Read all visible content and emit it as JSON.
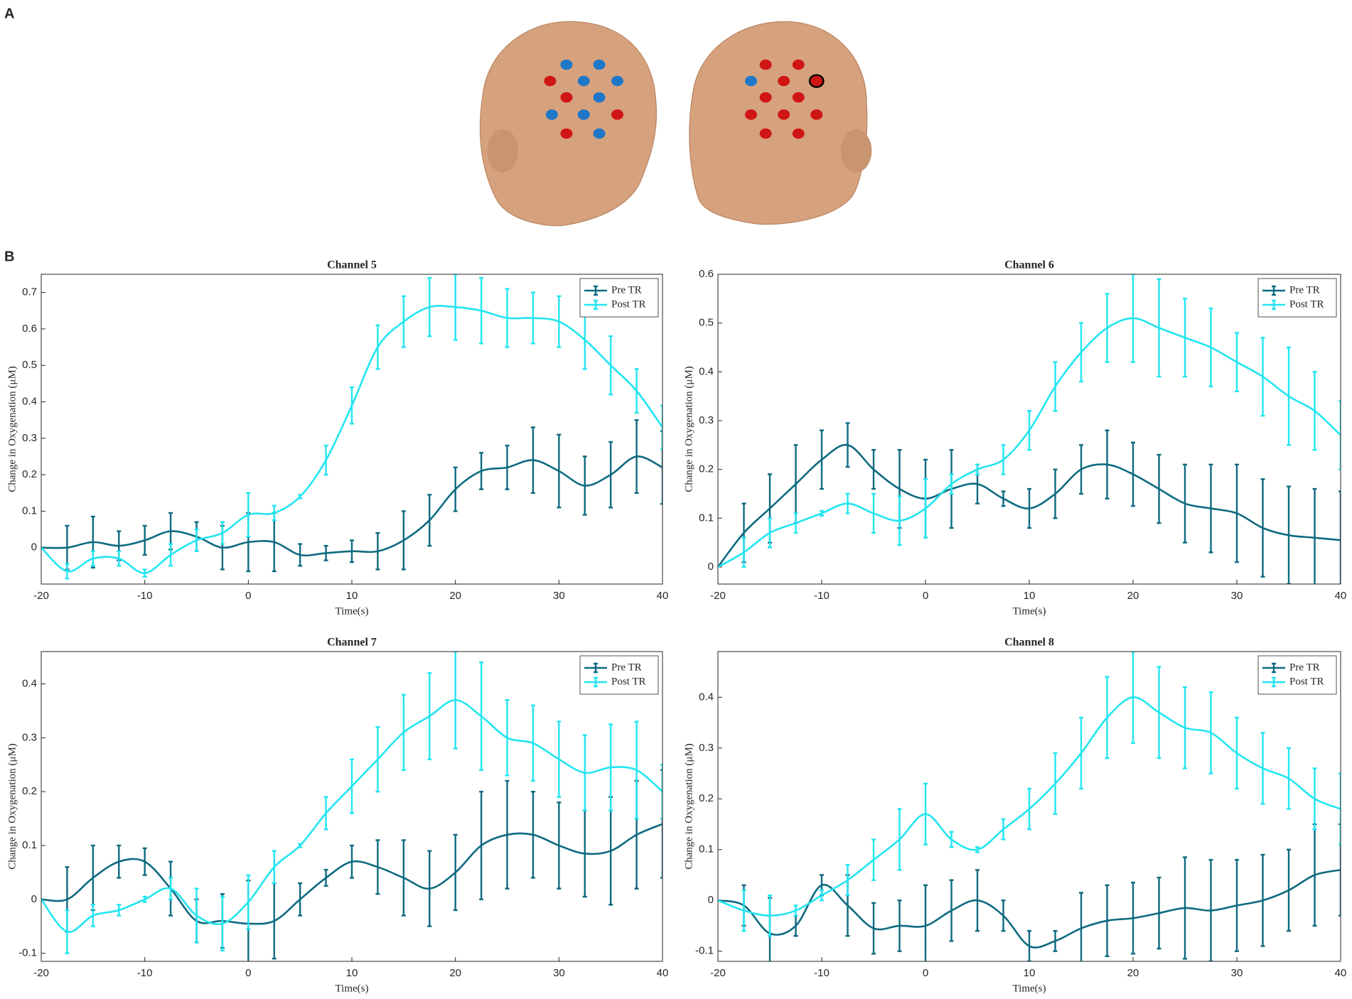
{
  "panel_labels": [
    "A",
    "B"
  ],
  "chart_data": [
    {
      "type": "line",
      "title": "Channel 5",
      "xlabel": "Time(s)",
      "ylabel": "Change in Oxygenation (μM)",
      "x": [
        -20,
        -17.5,
        -15,
        -12.5,
        -10,
        -7.5,
        -5,
        -2.5,
        0,
        2.5,
        5,
        7.5,
        10,
        12.5,
        15,
        17.5,
        20,
        22.5,
        25,
        27.5,
        30,
        32.5,
        35,
        37.5,
        40
      ],
      "xlim": [
        -20,
        40
      ],
      "xticks": [
        -20,
        -10,
        0,
        10,
        20,
        30,
        40
      ],
      "ylim": [
        -0.1,
        0.75
      ],
      "yticks": [
        0,
        0.1,
        0.2,
        0.3,
        0.4,
        0.5,
        0.6,
        0.7
      ],
      "legend": "upper right",
      "series": [
        {
          "name": "Pre TR",
          "color": "#0e6a80",
          "values": [
            0,
            0,
            0.015,
            0.005,
            0.02,
            0.045,
            0.03,
            0,
            0.015,
            0.015,
            -0.02,
            -0.015,
            -0.01,
            -0.01,
            0.02,
            0.075,
            0.16,
            0.21,
            0.22,
            0.24,
            0.21,
            0.17,
            0.2,
            0.25,
            0.22
          ],
          "errors": [
            null,
            0.06,
            0.07,
            0.04,
            0.04,
            0.05,
            0.04,
            0.06,
            0.08,
            0.08,
            0.03,
            0.02,
            0.03,
            0.05,
            0.08,
            0.07,
            0.06,
            0.05,
            0.06,
            0.09,
            0.1,
            0.08,
            0.09,
            0.1,
            0.1
          ]
        },
        {
          "name": "Post TR",
          "color": "#22e5f0",
          "values": [
            0,
            -0.065,
            -0.03,
            -0.03,
            -0.07,
            -0.02,
            0.02,
            0.04,
            0.09,
            0.095,
            0.14,
            0.24,
            0.39,
            0.55,
            0.62,
            0.66,
            0.66,
            0.65,
            0.63,
            0.63,
            0.62,
            0.57,
            0.5,
            0.43,
            0.33
          ],
          "errors": [
            null,
            0.02,
            0.02,
            0.02,
            0.01,
            0.03,
            0.03,
            0.03,
            0.06,
            0.02,
            0.005,
            0.04,
            0.05,
            0.06,
            0.07,
            0.08,
            0.09,
            0.09,
            0.08,
            0.07,
            0.07,
            0.08,
            0.08,
            0.06,
            0.06
          ]
        }
      ]
    },
    {
      "type": "line",
      "title": "Channel 6",
      "xlabel": "Time(s)",
      "ylabel": "Change in Oxygenation (μM)",
      "x": [
        -20,
        -17.5,
        -15,
        -12.5,
        -10,
        -7.5,
        -5,
        -2.5,
        0,
        2.5,
        5,
        7.5,
        10,
        12.5,
        15,
        17.5,
        20,
        22.5,
        25,
        27.5,
        30,
        32.5,
        35,
        37.5,
        40
      ],
      "xlim": [
        -20,
        40
      ],
      "xticks": [
        -20,
        -10,
        0,
        10,
        20,
        30,
        40
      ],
      "ylim": [
        -0.035,
        0.6
      ],
      "yticks": [
        0,
        0.1,
        0.2,
        0.3,
        0.4,
        0.5,
        0.6
      ],
      "legend": "upper right",
      "series": [
        {
          "name": "Pre TR",
          "color": "#0e6a80",
          "values": [
            0,
            0.07,
            0.12,
            0.17,
            0.22,
            0.25,
            0.2,
            0.16,
            0.14,
            0.16,
            0.17,
            0.14,
            0.12,
            0.15,
            0.2,
            0.21,
            0.19,
            0.16,
            0.13,
            0.12,
            0.11,
            0.08,
            0.065,
            0.06,
            0.055
          ],
          "errors": [
            null,
            0.06,
            0.07,
            0.08,
            0.06,
            0.045,
            0.04,
            0.08,
            0.08,
            0.08,
            0.04,
            0.015,
            0.04,
            0.05,
            0.05,
            0.07,
            0.065,
            0.07,
            0.08,
            0.09,
            0.1,
            0.1,
            0.1,
            0.1,
            0.1
          ]
        },
        {
          "name": "Post TR",
          "color": "#22e5f0",
          "values": [
            0,
            0.03,
            0.07,
            0.09,
            0.11,
            0.13,
            0.11,
            0.095,
            0.12,
            0.17,
            0.2,
            0.22,
            0.28,
            0.37,
            0.44,
            0.49,
            0.51,
            0.49,
            0.47,
            0.45,
            0.42,
            0.39,
            0.35,
            0.32,
            0.27
          ],
          "errors": [
            null,
            0.03,
            0.03,
            0.02,
            0.005,
            0.02,
            0.04,
            0.05,
            0.06,
            0.02,
            0.01,
            0.03,
            0.04,
            0.05,
            0.06,
            0.07,
            0.09,
            0.1,
            0.08,
            0.08,
            0.06,
            0.08,
            0.1,
            0.08,
            0.07
          ]
        }
      ]
    },
    {
      "type": "line",
      "title": "Channel 7",
      "xlabel": "Time(s)",
      "ylabel": "Change in Oxygenation (μM)",
      "x": [
        -20,
        -17.5,
        -15,
        -12.5,
        -10,
        -7.5,
        -5,
        -2.5,
        0,
        2.5,
        5,
        7.5,
        10,
        12.5,
        15,
        17.5,
        20,
        22.5,
        25,
        27.5,
        30,
        32.5,
        35,
        37.5,
        40
      ],
      "xlim": [
        -20,
        40
      ],
      "xticks": [
        -20,
        -10,
        0,
        10,
        20,
        30,
        40
      ],
      "ylim": [
        -0.115,
        0.46
      ],
      "yticks": [
        -0.1,
        0,
        0.1,
        0.2,
        0.3,
        0.4
      ],
      "legend": "upper right",
      "series": [
        {
          "name": "Pre TR",
          "color": "#0e6a80",
          "values": [
            0,
            0,
            0.04,
            0.07,
            0.07,
            0.02,
            -0.04,
            -0.04,
            -0.045,
            -0.04,
            0,
            0.04,
            0.07,
            0.06,
            0.04,
            0.02,
            0.05,
            0.1,
            0.12,
            0.12,
            0.1,
            0.085,
            0.09,
            0.12,
            0.14
          ],
          "errors": [
            null,
            0.06,
            0.06,
            0.03,
            0.025,
            0.05,
            0.04,
            0.05,
            0.08,
            0.07,
            0.03,
            0.015,
            0.03,
            0.05,
            0.07,
            0.07,
            0.07,
            0.1,
            0.1,
            0.08,
            0.08,
            0.08,
            0.1,
            0.1,
            0.1
          ]
        },
        {
          "name": "Post TR",
          "color": "#22e5f0",
          "values": [
            0,
            -0.06,
            -0.03,
            -0.02,
            0,
            0.02,
            -0.03,
            -0.045,
            -0.005,
            0.06,
            0.1,
            0.16,
            0.21,
            0.26,
            0.31,
            0.34,
            0.37,
            0.34,
            0.3,
            0.29,
            0.26,
            0.235,
            0.245,
            0.24,
            0.2
          ],
          "errors": [
            null,
            0.04,
            0.02,
            0.01,
            0.005,
            0.02,
            0.05,
            0.05,
            0.05,
            0.03,
            0.003,
            0.03,
            0.05,
            0.06,
            0.07,
            0.08,
            0.09,
            0.1,
            0.07,
            0.07,
            0.07,
            0.07,
            0.08,
            0.09,
            0.05
          ]
        }
      ]
    },
    {
      "type": "line",
      "title": "Channel 8",
      "xlabel": "Time(s)",
      "ylabel": "Change in Oxygenation (μM)",
      "x": [
        -20,
        -17.5,
        -15,
        -12.5,
        -10,
        -7.5,
        -5,
        -2.5,
        0,
        2.5,
        5,
        7.5,
        10,
        12.5,
        15,
        17.5,
        20,
        22.5,
        25,
        27.5,
        30,
        32.5,
        35,
        37.5,
        40
      ],
      "xlim": [
        -20,
        40
      ],
      "xticks": [
        -20,
        -10,
        0,
        10,
        20,
        30,
        40
      ],
      "ylim": [
        -0.12,
        0.49
      ],
      "yticks": [
        -0.1,
        0,
        0.1,
        0.2,
        0.3,
        0.4
      ],
      "legend": "upper right",
      "series": [
        {
          "name": "Pre TR",
          "color": "#0e6a80",
          "values": [
            0,
            -0.01,
            -0.065,
            -0.05,
            0.03,
            -0.01,
            -0.055,
            -0.05,
            -0.05,
            -0.02,
            0,
            -0.03,
            -0.09,
            -0.08,
            -0.055,
            -0.04,
            -0.035,
            -0.025,
            -0.015,
            -0.02,
            -0.01,
            0,
            0.02,
            0.05,
            0.06
          ],
          "errors": [
            null,
            0.04,
            0.07,
            0.02,
            0.02,
            0.06,
            0.05,
            0.05,
            0.08,
            0.06,
            0.06,
            0.03,
            0.03,
            0.02,
            0.07,
            0.07,
            0.07,
            0.07,
            0.1,
            0.1,
            0.09,
            0.09,
            0.08,
            0.1,
            0.09
          ]
        },
        {
          "name": "Post TR",
          "color": "#22e5f0",
          "values": [
            0,
            -0.02,
            -0.03,
            -0.02,
            0.01,
            0.04,
            0.08,
            0.12,
            0.17,
            0.12,
            0.1,
            0.14,
            0.18,
            0.23,
            0.29,
            0.36,
            0.4,
            0.37,
            0.34,
            0.33,
            0.29,
            0.26,
            0.24,
            0.2,
            0.18
          ],
          "errors": [
            null,
            0.04,
            0.04,
            0.01,
            0.01,
            0.03,
            0.04,
            0.06,
            0.06,
            0.015,
            0.005,
            0.02,
            0.04,
            0.06,
            0.07,
            0.08,
            0.09,
            0.09,
            0.08,
            0.08,
            0.07,
            0.07,
            0.06,
            0.06,
            0.07
          ]
        }
      ]
    }
  ]
}
